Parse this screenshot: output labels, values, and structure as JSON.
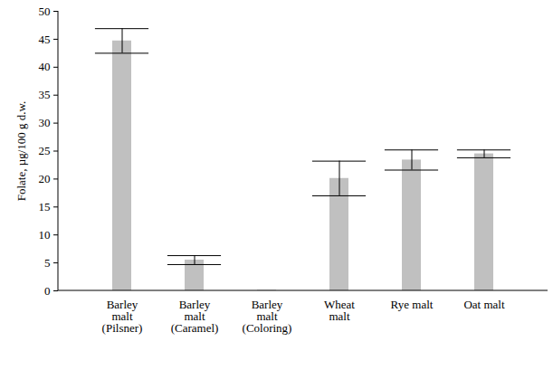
{
  "chart_data": {
    "type": "bar",
    "categories": [
      "Barley\nmalt\n(Pilsner)",
      "Barley\nmalt\n(Caramel)",
      "Barley\nmalt\n(Coloring)",
      "Wheat\nmalt",
      "Rye malt",
      "Oat malt"
    ],
    "values": [
      44.7,
      5.5,
      0.1,
      20.1,
      23.4,
      24.5
    ],
    "errors": [
      2.2,
      0.8,
      0,
      3.1,
      1.8,
      0.7
    ],
    "color": "#c0c0c0",
    "y_label": "Folate, µg/100 g d.w.",
    "ylim": [
      0,
      50
    ],
    "yticks": [
      0,
      5,
      10,
      15,
      20,
      25,
      30,
      35,
      40,
      45,
      50
    ],
    "grid": false
  }
}
